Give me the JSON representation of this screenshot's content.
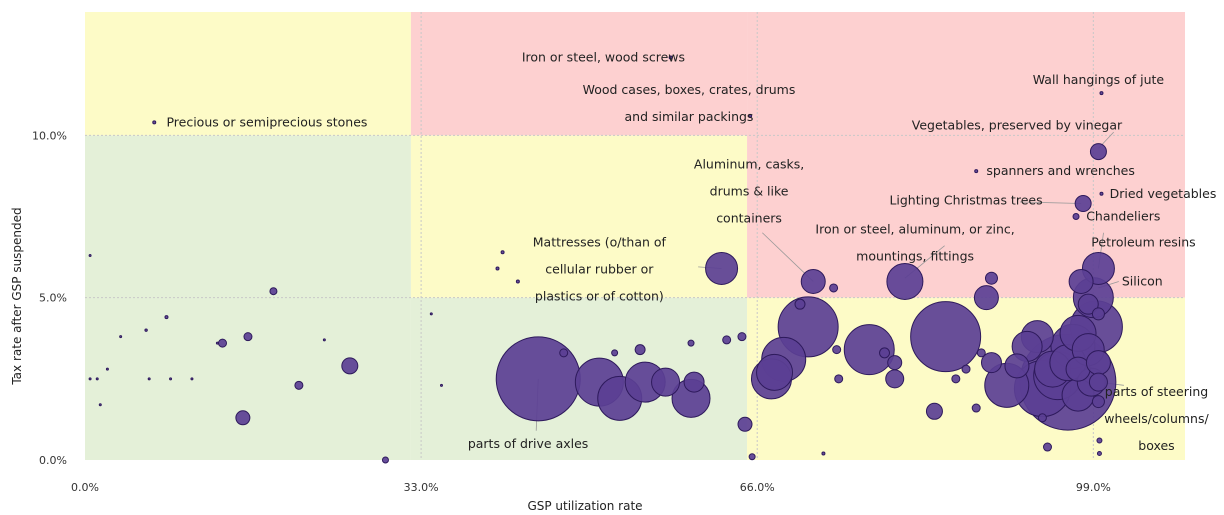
{
  "chart_data": {
    "type": "scatter",
    "xlabel": "GSP utilization rate",
    "ylabel": "Tax rate after GSP suspended",
    "xlim": [
      0,
      108
    ],
    "ylim": [
      0,
      13.8
    ],
    "x_ticks": [
      {
        "value": 0,
        "label": "0.0%"
      },
      {
        "value": 33,
        "label": "33.0%"
      },
      {
        "value": 66,
        "label": "66.0%"
      },
      {
        "value": 99,
        "label": "99.0%"
      }
    ],
    "y_ticks": [
      {
        "value": 0,
        "label": "0.0%"
      },
      {
        "value": 5,
        "label": "5.0%"
      },
      {
        "value": 10,
        "label": "10.0%"
      }
    ],
    "zones": [
      {
        "x": [
          0,
          32
        ],
        "y": [
          0,
          10
        ],
        "color": "#e4f0d8"
      },
      {
        "x": [
          0,
          32
        ],
        "y": [
          10,
          13.8
        ],
        "color": "#fdfbc7"
      },
      {
        "x": [
          32,
          65
        ],
        "y": [
          0,
          5
        ],
        "color": "#e4f0d8"
      },
      {
        "x": [
          32,
          65
        ],
        "y": [
          5,
          10
        ],
        "color": "#fdfbc7"
      },
      {
        "x": [
          32,
          65
        ],
        "y": [
          10,
          13.8
        ],
        "color": "#fdd0d0"
      },
      {
        "x": [
          65,
          108
        ],
        "y": [
          5,
          13.8
        ],
        "color": "#fdd0d0"
      },
      {
        "x": [
          65,
          108
        ],
        "y": [
          0,
          5
        ],
        "color": "#fdfbc7"
      }
    ],
    "points": [
      {
        "x": 0.5,
        "y": 6.3,
        "r": 1
      },
      {
        "x": 0.5,
        "y": 2.5,
        "r": 1
      },
      {
        "x": 1.2,
        "y": 2.5,
        "r": 1
      },
      {
        "x": 1.5,
        "y": 1.7,
        "r": 1
      },
      {
        "x": 2.2,
        "y": 2.8,
        "r": 1
      },
      {
        "x": 3.5,
        "y": 3.8,
        "r": 1
      },
      {
        "x": 6,
        "y": 4,
        "r": 1.2
      },
      {
        "x": 6.3,
        "y": 2.5,
        "r": 1
      },
      {
        "x": 6.8,
        "y": 10.4,
        "r": 1.5
      },
      {
        "x": 8,
        "y": 4.4,
        "r": 1.5
      },
      {
        "x": 8.4,
        "y": 2.5,
        "r": 1
      },
      {
        "x": 10.5,
        "y": 2.5,
        "r": 1
      },
      {
        "x": 13,
        "y": 3.6,
        "r": 1
      },
      {
        "x": 13.5,
        "y": 3.6,
        "r": 4
      },
      {
        "x": 15.5,
        "y": 1.3,
        "r": 7
      },
      {
        "x": 16,
        "y": 3.8,
        "r": 4
      },
      {
        "x": 18.5,
        "y": 5.2,
        "r": 3.5
      },
      {
        "x": 21,
        "y": 2.3,
        "r": 4
      },
      {
        "x": 23.5,
        "y": 3.7,
        "r": 1
      },
      {
        "x": 26,
        "y": 2.9,
        "r": 8
      },
      {
        "x": 29.5,
        "y": 0,
        "r": 3
      },
      {
        "x": 34,
        "y": 4.5,
        "r": 1
      },
      {
        "x": 35,
        "y": 2.3,
        "r": 1
      },
      {
        "x": 40.5,
        "y": 5.9,
        "r": 1.5
      },
      {
        "x": 41,
        "y": 6.4,
        "r": 1.5
      },
      {
        "x": 42.5,
        "y": 5.5,
        "r": 1.5
      },
      {
        "x": 44.5,
        "y": 2.5,
        "r": 42
      },
      {
        "x": 47,
        "y": 3.3,
        "r": 4
      },
      {
        "x": 50.5,
        "y": 2.4,
        "r": 24
      },
      {
        "x": 52,
        "y": 3.3,
        "r": 3
      },
      {
        "x": 52.5,
        "y": 1.9,
        "r": 22
      },
      {
        "x": 54.5,
        "y": 3.4,
        "r": 5
      },
      {
        "x": 55,
        "y": 2.4,
        "r": 20
      },
      {
        "x": 57,
        "y": 2.4,
        "r": 14
      },
      {
        "x": 59.5,
        "y": 3.6,
        "r": 3
      },
      {
        "x": 59.5,
        "y": 1.9,
        "r": 19
      },
      {
        "x": 59.8,
        "y": 2.4,
        "r": 10
      },
      {
        "x": 62.5,
        "y": 5.9,
        "r": 16
      },
      {
        "x": 63,
        "y": 3.7,
        "r": 4
      },
      {
        "x": 64.5,
        "y": 3.8,
        "r": 4
      },
      {
        "x": 64.8,
        "y": 1.1,
        "r": 7
      },
      {
        "x": 65.5,
        "y": 0.1,
        "r": 3
      },
      {
        "x": 67.4,
        "y": 2.5,
        "r": 20
      },
      {
        "x": 67.7,
        "y": 2.7,
        "r": 18
      },
      {
        "x": 68.6,
        "y": 3.1,
        "r": 22
      },
      {
        "x": 70.2,
        "y": 4.8,
        "r": 5
      },
      {
        "x": 71,
        "y": 4.1,
        "r": 30
      },
      {
        "x": 71.5,
        "y": 5.5,
        "r": 12
      },
      {
        "x": 73.5,
        "y": 5.3,
        "r": 4
      },
      {
        "x": 73.8,
        "y": 3.4,
        "r": 4
      },
      {
        "x": 74,
        "y": 2.5,
        "r": 4
      },
      {
        "x": 72.5,
        "y": 0.2,
        "r": 1.5
      },
      {
        "x": 77,
        "y": 3.4,
        "r": 25
      },
      {
        "x": 78.5,
        "y": 3.3,
        "r": 5
      },
      {
        "x": 79.5,
        "y": 2.5,
        "r": 9
      },
      {
        "x": 79.5,
        "y": 3.0,
        "r": 7
      },
      {
        "x": 80.5,
        "y": 5.5,
        "r": 18
      },
      {
        "x": 83.4,
        "y": 1.5,
        "r": 8
      },
      {
        "x": 84.5,
        "y": 3.8,
        "r": 35
      },
      {
        "x": 85.5,
        "y": 2.5,
        "r": 4
      },
      {
        "x": 86.5,
        "y": 2.8,
        "r": 4
      },
      {
        "x": 87.5,
        "y": 1.6,
        "r": 4
      },
      {
        "x": 88,
        "y": 3.3,
        "r": 4
      },
      {
        "x": 88.5,
        "y": 5.0,
        "r": 12
      },
      {
        "x": 89,
        "y": 5.6,
        "r": 6
      },
      {
        "x": 89,
        "y": 3.0,
        "r": 10
      },
      {
        "x": 90.5,
        "y": 2.3,
        "r": 22
      },
      {
        "x": 91.5,
        "y": 2.9,
        "r": 12
      },
      {
        "x": 92.5,
        "y": 3.5,
        "r": 15
      },
      {
        "x": 93.5,
        "y": 3.8,
        "r": 16
      },
      {
        "x": 94,
        "y": 2.2,
        "r": 28
      },
      {
        "x": 94,
        "y": 1.3,
        "r": 4
      },
      {
        "x": 94.5,
        "y": 0.4,
        "r": 4
      },
      {
        "x": 95,
        "y": 2.8,
        "r": 18
      },
      {
        "x": 95.5,
        "y": 2.6,
        "r": 24
      },
      {
        "x": 96.5,
        "y": 2.4,
        "r": 48
      },
      {
        "x": 96.5,
        "y": 3.0,
        "r": 18
      },
      {
        "x": 97,
        "y": 3.5,
        "r": 22
      },
      {
        "x": 97.5,
        "y": 2.0,
        "r": 16
      },
      {
        "x": 97.5,
        "y": 3.9,
        "r": 18
      },
      {
        "x": 97.8,
        "y": 5.5,
        "r": 12
      },
      {
        "x": 97.5,
        "y": 2.8,
        "r": 12
      },
      {
        "x": 98,
        "y": 7.9,
        "r": 8
      },
      {
        "x": 97.3,
        "y": 7.5,
        "r": 3
      },
      {
        "x": 98.5,
        "y": 4.8,
        "r": 10
      },
      {
        "x": 98.5,
        "y": 3.4,
        "r": 16
      },
      {
        "x": 98.8,
        "y": 2.4,
        "r": 14
      },
      {
        "x": 99,
        "y": 5.0,
        "r": 20
      },
      {
        "x": 99.3,
        "y": 4.1,
        "r": 26
      },
      {
        "x": 99.5,
        "y": 5.9,
        "r": 16
      },
      {
        "x": 99.5,
        "y": 9.5,
        "r": 8
      },
      {
        "x": 99.5,
        "y": 2.4,
        "r": 9
      },
      {
        "x": 99.5,
        "y": 1.8,
        "r": 6
      },
      {
        "x": 99.5,
        "y": 3.0,
        "r": 12
      },
      {
        "x": 99.6,
        "y": 0.6,
        "r": 2.5
      },
      {
        "x": 99.6,
        "y": 0.2,
        "r": 2
      },
      {
        "x": 99.8,
        "y": 8.2,
        "r": 1.5
      },
      {
        "x": 99.8,
        "y": 11.3,
        "r": 1.5
      },
      {
        "x": 99.5,
        "y": 4.5,
        "r": 6
      },
      {
        "x": 65.3,
        "y": 10.6,
        "r": 1.5
      },
      {
        "x": 57.5,
        "y": 12.4,
        "r": 1.5
      },
      {
        "x": 87.5,
        "y": 8.9,
        "r": 1.5
      }
    ],
    "annotations": [
      {
        "lines": [
          "Iron or steel, wood screws"
        ],
        "x": 50.9,
        "y": 12.4,
        "anchor": "middle"
      },
      {
        "lines": [
          "Wood cases, boxes, crates, drums",
          "and similar packings"
        ],
        "x": 59.3,
        "y": 11.4,
        "anchor": "middle"
      },
      {
        "lines": [
          "Wall hangings of jute"
        ],
        "x": 99.5,
        "y": 11.7,
        "anchor": "middle"
      },
      {
        "lines": [
          "Precious or semiprecious stones"
        ],
        "x": 8,
        "y": 10.4,
        "anchor": "start"
      },
      {
        "lines": [
          "Vegetables, preserved by vinegar"
        ],
        "x": 91.5,
        "y": 10.3,
        "anchor": "middle"
      },
      {
        "lines": [
          "spanners and wrenches"
        ],
        "x": 88.5,
        "y": 8.9,
        "anchor": "start"
      },
      {
        "lines": [
          "Aluminum,  casks,",
          "drums & like",
          "containers"
        ],
        "x": 65.2,
        "y": 9.1,
        "anchor": "middle"
      },
      {
        "lines": [
          "Lighting Christmas trees"
        ],
        "x": 86.5,
        "y": 8.0,
        "anchor": "middle"
      },
      {
        "lines": [
          "Dried vegetables"
        ],
        "x": 100.6,
        "y": 8.2,
        "anchor": "start"
      },
      {
        "lines": [
          "Chandeliers"
        ],
        "x": 98.3,
        "y": 7.5,
        "anchor": "start"
      },
      {
        "lines": [
          "Iron or steel, aluminum, or zinc,",
          "mountings, fittings"
        ],
        "x": 81.5,
        "y": 7.1,
        "anchor": "middle"
      },
      {
        "lines": [
          "Mattresses (o/than of",
          "cellular rubber or",
          "plastics or of cotton)"
        ],
        "x": 50.5,
        "y": 6.7,
        "anchor": "middle"
      },
      {
        "lines": [
          "Petroleum resins"
        ],
        "x": 98.8,
        "y": 6.7,
        "anchor": "start"
      },
      {
        "lines": [
          "Silicon"
        ],
        "x": 101.8,
        "y": 5.5,
        "anchor": "start"
      },
      {
        "lines": [
          "parts of steering",
          "wheels/columns/",
          "boxes"
        ],
        "x": 105.2,
        "y": 2.1,
        "anchor": "middle"
      },
      {
        "lines": [
          "parts of drive axles"
        ],
        "x": 43.5,
        "y": 0.5,
        "anchor": "middle"
      }
    ]
  }
}
